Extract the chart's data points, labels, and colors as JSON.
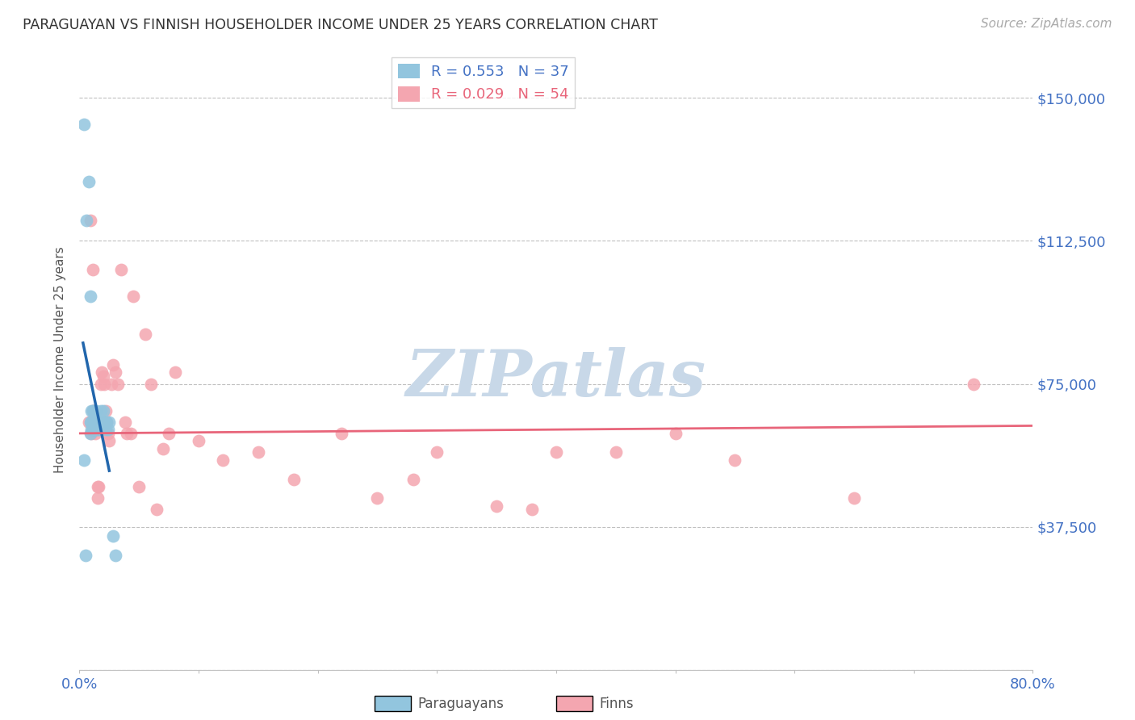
{
  "title": "PARAGUAYAN VS FINNISH HOUSEHOLDER INCOME UNDER 25 YEARS CORRELATION CHART",
  "source": "Source: ZipAtlas.com",
  "ylabel": "Householder Income Under 25 years",
  "xlim": [
    0.0,
    0.8
  ],
  "ylim": [
    0,
    162500
  ],
  "yticks": [
    0,
    37500,
    75000,
    112500,
    150000
  ],
  "ytick_labels": [
    "",
    "$37,500",
    "$75,000",
    "$112,500",
    "$150,000"
  ],
  "xtick_positions": [
    0.0,
    0.1,
    0.2,
    0.3,
    0.4,
    0.5,
    0.6,
    0.7,
    0.8
  ],
  "xtick_labels": [
    "0.0%",
    "",
    "",
    "",
    "",
    "",
    "",
    "",
    "80.0%"
  ],
  "paraguayan_color": "#92C5DE",
  "finn_color": "#F4A6B0",
  "paraguayan_line_color": "#2166AC",
  "finn_line_color": "#E8657A",
  "R_paraguayan": 0.553,
  "N_paraguayan": 37,
  "R_finn": 0.029,
  "N_finn": 54,
  "watermark": "ZIPatlas",
  "watermark_color": "#C8D8E8",
  "background_color": "#FFFFFF",
  "par_x": [
    0.004,
    0.006,
    0.008,
    0.009,
    0.009,
    0.009,
    0.01,
    0.01,
    0.01,
    0.011,
    0.011,
    0.011,
    0.012,
    0.012,
    0.012,
    0.013,
    0.013,
    0.014,
    0.014,
    0.015,
    0.015,
    0.016,
    0.016,
    0.017,
    0.018,
    0.019,
    0.02,
    0.021,
    0.022,
    0.022,
    0.023,
    0.024,
    0.025,
    0.028,
    0.03,
    0.004,
    0.005
  ],
  "par_y": [
    143000,
    118000,
    128000,
    98000,
    65000,
    62000,
    68000,
    65000,
    63000,
    68000,
    65000,
    63000,
    68000,
    65000,
    63000,
    65000,
    63000,
    68000,
    65000,
    65000,
    63000,
    65000,
    63000,
    65000,
    68000,
    65000,
    68000,
    65000,
    65000,
    63000,
    65000,
    63000,
    65000,
    35000,
    30000,
    55000,
    30000
  ],
  "finn_x": [
    0.008,
    0.009,
    0.01,
    0.011,
    0.011,
    0.012,
    0.012,
    0.013,
    0.013,
    0.014,
    0.015,
    0.015,
    0.016,
    0.017,
    0.018,
    0.019,
    0.02,
    0.021,
    0.022,
    0.023,
    0.024,
    0.025,
    0.027,
    0.028,
    0.03,
    0.032,
    0.035,
    0.038,
    0.04,
    0.043,
    0.045,
    0.05,
    0.055,
    0.06,
    0.065,
    0.07,
    0.075,
    0.08,
    0.1,
    0.12,
    0.15,
    0.18,
    0.22,
    0.25,
    0.28,
    0.3,
    0.35,
    0.38,
    0.4,
    0.45,
    0.5,
    0.55,
    0.65,
    0.75
  ],
  "finn_y": [
    65000,
    118000,
    62000,
    105000,
    68000,
    68000,
    65000,
    62000,
    65000,
    65000,
    48000,
    45000,
    48000,
    65000,
    75000,
    78000,
    77000,
    75000,
    68000,
    65000,
    62000,
    60000,
    75000,
    80000,
    78000,
    75000,
    105000,
    65000,
    62000,
    62000,
    98000,
    48000,
    88000,
    75000,
    42000,
    58000,
    62000,
    78000,
    60000,
    55000,
    57000,
    50000,
    62000,
    45000,
    50000,
    57000,
    43000,
    42000,
    57000,
    57000,
    62000,
    55000,
    45000,
    75000
  ]
}
